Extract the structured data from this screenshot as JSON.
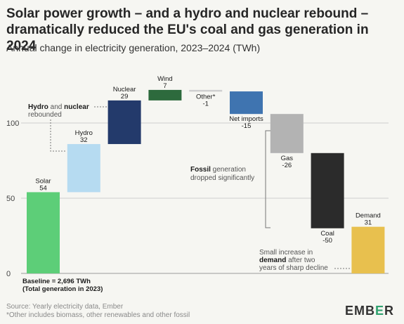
{
  "title": "Solar power growth – and a hydro and nuclear rebound – dramatically reduced the EU's coal and gas generation in 2024",
  "subtitle": "Annual change in electricity generation, 2023–2024 (TWh)",
  "chart_data": {
    "type": "bar",
    "subtype": "waterfall",
    "title": "Solar power growth – and a hydro and nuclear rebound – dramatically reduced the EU's coal and gas generation in 2024",
    "subtitle": "Annual change in electricity generation, 2023–2024 (TWh)",
    "baseline_note": "Baseline = 2,696 TWh (Total generation in 2023)",
    "y_ticks": [
      0,
      50,
      100
    ],
    "ylim": [
      0,
      125
    ],
    "grid": true,
    "steps": [
      {
        "name": "Solar",
        "value": 54,
        "start": 0,
        "end": 54,
        "color": "#5dce78",
        "label": "Solar",
        "value_label": "54"
      },
      {
        "name": "Hydro",
        "value": 32,
        "start": 54,
        "end": 86,
        "color": "#b6dbf1",
        "label": "Hydro",
        "value_label": "32"
      },
      {
        "name": "Nuclear",
        "value": 29,
        "start": 86,
        "end": 115,
        "color": "#233a6b",
        "label": "Nuclear",
        "value_label": "29"
      },
      {
        "name": "Wind",
        "value": 7,
        "start": 115,
        "end": 122,
        "color": "#2d6a3d",
        "label": "Wind",
        "value_label": "7"
      },
      {
        "name": "Other*",
        "value": -1,
        "start": 122,
        "end": 121,
        "color": "#cfcfcf",
        "label": "Other*",
        "value_label": "-1"
      },
      {
        "name": "Net imports",
        "value": -15,
        "start": 121,
        "end": 106,
        "color": "#3f74b0",
        "label": "Net imports",
        "value_label": "-15"
      },
      {
        "name": "Gas",
        "value": -26,
        "start": 106,
        "end": 80,
        "color": "#b3b3b3",
        "label": "Gas",
        "value_label": "-26"
      },
      {
        "name": "Coal",
        "value": -50,
        "start": 80,
        "end": 30,
        "color": "#2b2b2b",
        "label": "Coal",
        "value_label": "-50"
      },
      {
        "name": "Demand",
        "value": 31,
        "start": 0,
        "end": 31,
        "color": "#e8c04e",
        "label": "Demand",
        "value_label": "31"
      }
    ],
    "annotations": [
      {
        "bold": "Hydro",
        "text1": " and ",
        "bold2": "nuclear",
        "line2": "rebounded"
      },
      {
        "bold": "Fossil",
        "text1": " generation",
        "line2": "dropped significantly"
      },
      {
        "line1": "Small increase in",
        "bold": "demand",
        "text2": " after two",
        "line3": "years of sharp decline"
      }
    ]
  },
  "footer": {
    "source": "Source: Yearly electricity data, Ember",
    "note": "*Other includes biomass, other renewables and other fossil"
  },
  "logo": {
    "left": "EMB",
    "mark": "E",
    "right": "R"
  }
}
